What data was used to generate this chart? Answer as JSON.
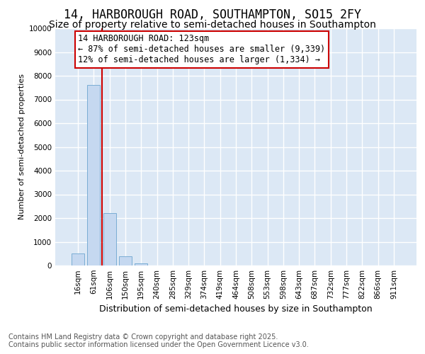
{
  "title": "14, HARBOROUGH ROAD, SOUTHAMPTON, SO15 2FY",
  "subtitle": "Size of property relative to semi-detached houses in Southampton",
  "xlabel": "Distribution of semi-detached houses by size in Southampton",
  "ylabel": "Number of semi-detached properties",
  "categories": [
    "16sqm",
    "61sqm",
    "106sqm",
    "150sqm",
    "195sqm",
    "240sqm",
    "285sqm",
    "329sqm",
    "374sqm",
    "419sqm",
    "464sqm",
    "508sqm",
    "553sqm",
    "598sqm",
    "643sqm",
    "687sqm",
    "732sqm",
    "777sqm",
    "822sqm",
    "866sqm",
    "911sqm"
  ],
  "values": [
    510,
    7600,
    2200,
    380,
    80,
    0,
    0,
    0,
    0,
    0,
    0,
    0,
    0,
    0,
    0,
    0,
    0,
    0,
    0,
    0,
    0
  ],
  "bar_color": "#c5d8f0",
  "bar_edge_color": "#7aadd4",
  "highlight_line_color": "#cc0000",
  "red_line_x": 1.5,
  "ylim": [
    0,
    10000
  ],
  "yticks": [
    0,
    1000,
    2000,
    3000,
    4000,
    5000,
    6000,
    7000,
    8000,
    9000,
    10000
  ],
  "annotation_text": "14 HARBOROUGH ROAD: 123sqm\n← 87% of semi-detached houses are smaller (9,339)\n12% of semi-detached houses are larger (1,334) →",
  "annotation_box_facecolor": "#ffffff",
  "annotation_box_edgecolor": "#cc0000",
  "footnote": "Contains HM Land Registry data © Crown copyright and database right 2025.\nContains public sector information licensed under the Open Government Licence v3.0.",
  "background_color": "#ffffff",
  "plot_background_color": "#dce8f5",
  "grid_color": "#ffffff",
  "title_fontsize": 12,
  "subtitle_fontsize": 10,
  "annotation_fontsize": 8.5,
  "ylabel_fontsize": 8,
  "xlabel_fontsize": 9,
  "tick_fontsize": 7.5,
  "footnote_fontsize": 7
}
